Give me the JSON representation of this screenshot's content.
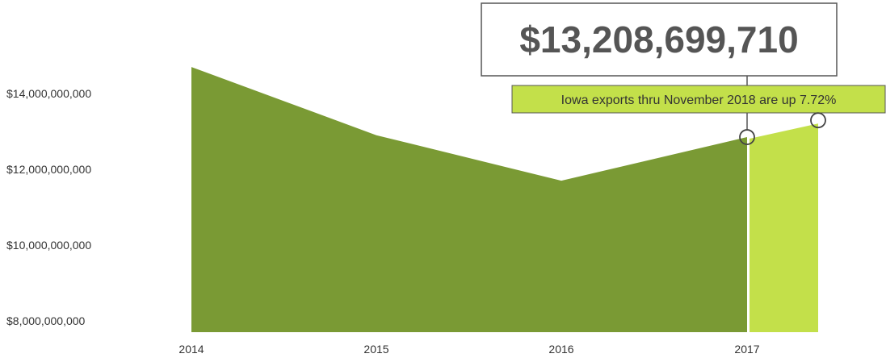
{
  "chart_data": {
    "type": "area",
    "x": [
      "2014",
      "2015",
      "2016",
      "2017",
      "2018"
    ],
    "series": [
      {
        "values": [
          14700000000,
          12900000000,
          11700000000,
          12850000000,
          13208699710
        ],
        "color": "#7a9a34"
      }
    ],
    "highlight": {
      "from": "2017",
      "to": "2018",
      "color": "#c3e04a"
    },
    "yticks": [
      "$14,000,000,000",
      "$12,000,000,000",
      "$10,000,000,000",
      "$8,000,000,000"
    ],
    "ytick_values": [
      14000000000,
      12000000000,
      10000000000,
      8000000000
    ],
    "xticks": [
      "2014",
      "2015",
      "2016",
      "2017"
    ],
    "ylim": [
      8000000000,
      15500000000
    ],
    "grid": false,
    "callout_value": "$13,208,699,710",
    "callout_note": "Iowa exports thru November 2018 are up 7.72%",
    "colors": {
      "main_fill": "#7a9a34",
      "highlight_fill": "#c3e04a",
      "note_bg": "#c3e04a",
      "text": "#333333",
      "value_text": "#555555"
    }
  }
}
